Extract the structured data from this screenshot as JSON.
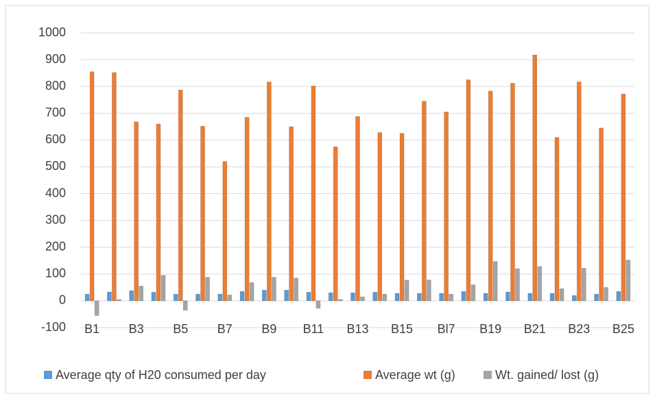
{
  "chart_data": {
    "type": "bar",
    "categories": [
      "B1",
      null,
      "B3",
      null,
      "B5",
      null,
      "B7",
      null,
      "B9",
      null,
      "B11",
      null,
      "B13",
      null,
      "B15",
      null,
      "Bl7",
      null,
      "B19",
      null,
      "B21",
      null,
      "B23",
      null,
      "B25"
    ],
    "series": [
      {
        "name": "Average qty of H20 consumed per day",
        "color": "#5b9bd5",
        "values": [
          25,
          33,
          38,
          32,
          25,
          25,
          25,
          35,
          40,
          40,
          32,
          30,
          30,
          32,
          28,
          28,
          28,
          35,
          28,
          33,
          28,
          28,
          20,
          25,
          35
        ]
      },
      {
        "name": "Average wt (g)",
        "color": "#ed7d31",
        "values": [
          855,
          852,
          668,
          660,
          787,
          652,
          520,
          685,
          817,
          650,
          802,
          575,
          688,
          628,
          625,
          745,
          705,
          825,
          783,
          812,
          918,
          610,
          817,
          645,
          772
        ]
      },
      {
        "name": "Wt. gained/ lost (g)",
        "color": "#a5a5a5",
        "values": [
          -55,
          5,
          55,
          95,
          -35,
          88,
          22,
          68,
          88,
          85,
          -28,
          5,
          15,
          25,
          77,
          78,
          25,
          60,
          147,
          120,
          128,
          45,
          122,
          50,
          152
        ]
      }
    ],
    "ylim": [
      -100,
      1000
    ],
    "yticks": [
      -100,
      0,
      100,
      200,
      300,
      400,
      500,
      600,
      700,
      800,
      900,
      1000
    ],
    "grid": true,
    "legend": "bottom"
  }
}
